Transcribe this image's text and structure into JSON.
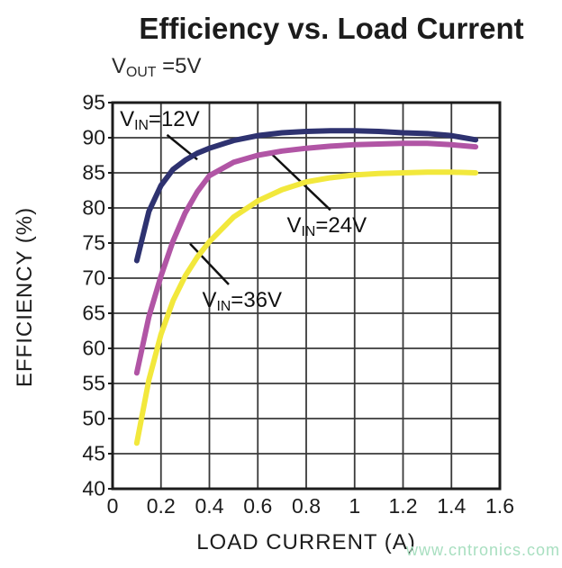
{
  "title": "Efficiency vs. Load Current",
  "subtitle": {
    "pre": "V",
    "sub": "OUT",
    "rest": " =5V"
  },
  "watermark": "www.cntronics.com",
  "chart_data": {
    "type": "line",
    "title": "Efficiency vs. Load Current",
    "subtitle": "VOUT =5V",
    "xlabel": "LOAD CURRENT (A)",
    "ylabel": "EFFICIENCY (%)",
    "xlim": [
      0,
      1.6
    ],
    "ylim": [
      40,
      95
    ],
    "grid": true,
    "legend_position": "inline-annotations",
    "xticks": [
      "0",
      "0.2",
      "0.4",
      "0.6",
      "0.8",
      "1",
      "1.2",
      "1.4",
      "1.6"
    ],
    "yticks": [
      "95",
      "90",
      "85",
      "80",
      "75",
      "70",
      "65",
      "60",
      "55",
      "50",
      "45",
      "40"
    ],
    "x": [
      0.1,
      0.15,
      0.2,
      0.25,
      0.3,
      0.35,
      0.4,
      0.5,
      0.6,
      0.7,
      0.8,
      0.9,
      1.0,
      1.1,
      1.2,
      1.3,
      1.4,
      1.5
    ],
    "series": [
      {
        "name": "VIN=12V",
        "color": "#2e3270",
        "values": [
          72.5,
          79.5,
          83.2,
          85.5,
          86.8,
          87.8,
          88.5,
          89.6,
          90.3,
          90.7,
          90.9,
          91.0,
          91.0,
          90.9,
          90.7,
          90.6,
          90.3,
          89.7
        ]
      },
      {
        "name": "VIN=24V",
        "color": "#b155a5",
        "values": [
          56.5,
          64.5,
          70.3,
          75.3,
          79.3,
          82.3,
          84.6,
          86.5,
          87.5,
          88.1,
          88.5,
          88.8,
          89.0,
          89.1,
          89.2,
          89.2,
          89.0,
          88.7
        ]
      },
      {
        "name": "VIN=36V",
        "color": "#f2e83c",
        "values": [
          46.5,
          55.5,
          62.0,
          66.8,
          70.3,
          73.0,
          75.2,
          78.7,
          81.0,
          82.6,
          83.7,
          84.3,
          84.7,
          84.9,
          85.0,
          85.1,
          85.1,
          85.0
        ]
      }
    ],
    "annotations": [
      {
        "pre": "V",
        "sub": "IN",
        "suf": "=12V",
        "label_x": 0.03,
        "label_y": 94.4,
        "leader": [
          [
            0.225,
            90.4
          ],
          [
            0.35,
            86.9
          ]
        ]
      },
      {
        "pre": "V",
        "sub": "IN",
        "suf": "=24V",
        "label_x": 0.72,
        "label_y": 79.2,
        "leader": [
          [
            0.66,
            87.6
          ],
          [
            0.9,
            79.7
          ]
        ]
      },
      {
        "pre": "V",
        "sub": "IN",
        "suf": "=36V",
        "label_x": 0.37,
        "label_y": 68.6,
        "leader": [
          [
            0.32,
            74.9
          ],
          [
            0.48,
            69.1
          ]
        ]
      }
    ],
    "colors": {
      "grid": "#3a3a3a",
      "frame": "#1c1c1c",
      "leader": "#111111",
      "text": "#1c1c1c",
      "watermark": "#a8dfc0"
    }
  }
}
